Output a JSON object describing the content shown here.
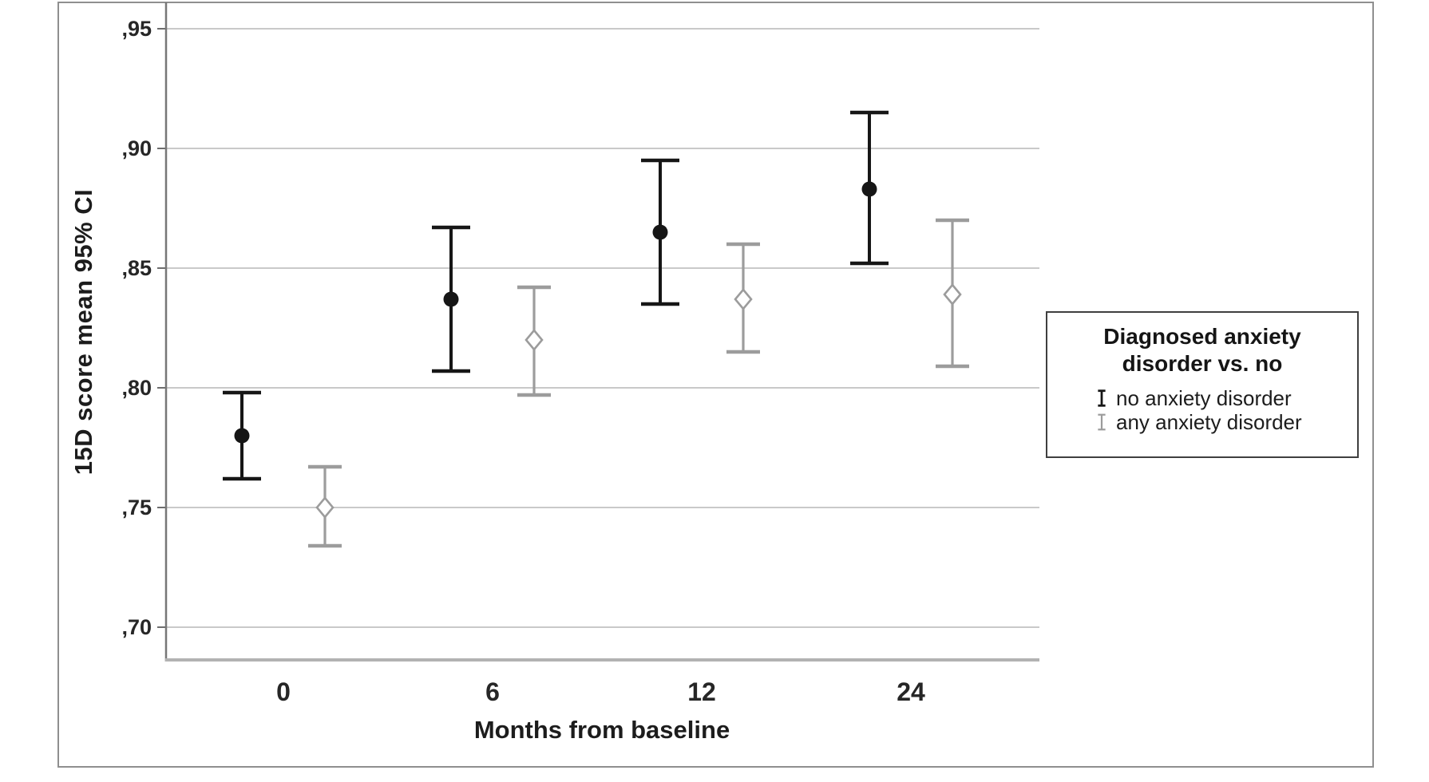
{
  "figure": {
    "kind": "clustered error bar chart",
    "background": "#ffffff",
    "frame_color": "#8f8f8f"
  },
  "legend": {
    "title_line1": "Diagnosed anxiety",
    "title_line2": "disorder vs. no",
    "items": [
      {
        "label": "no anxiety disorder",
        "icon": "black-errorbar-icon",
        "color": "#161616"
      },
      {
        "label": "any anxiety disorder",
        "icon": "gray-errorbar-icon",
        "color": "#9c9c9c"
      }
    ]
  },
  "chart_data": {
    "type": "errorbar",
    "title": "",
    "xlabel": "Months from baseline",
    "ylabel": "15D score mean 95% CI",
    "categories": [
      "0",
      "6",
      "12",
      "24"
    ],
    "error_bars": "95% CI",
    "grid": true,
    "legend_position": "right",
    "ylim": [
      0.69,
      0.96
    ],
    "y_axis": {
      "ticks": [
        {
          "label": ",95",
          "value": 0.95
        },
        {
          "label": ",90",
          "value": 0.9
        },
        {
          "label": ",85",
          "value": 0.85
        },
        {
          "label": ",80",
          "value": 0.8
        },
        {
          "label": ",75",
          "value": 0.75
        },
        {
          "label": ",70",
          "value": 0.7
        }
      ]
    },
    "series": [
      {
        "name": "no anxiety disorder",
        "marker": "filled-circle",
        "color": "#161616",
        "means": [
          0.78,
          0.837,
          0.865,
          0.883
        ],
        "ci_low": [
          0.762,
          0.807,
          0.835,
          0.852
        ],
        "ci_high": [
          0.798,
          0.867,
          0.895,
          0.915
        ]
      },
      {
        "name": "any anxiety disorder",
        "marker": "open-diamond",
        "color": "#9c9c9c",
        "means": [
          0.75,
          0.82,
          0.837,
          0.839
        ],
        "ci_low": [
          0.734,
          0.797,
          0.815,
          0.809
        ],
        "ci_high": [
          0.767,
          0.842,
          0.86,
          0.87
        ]
      }
    ]
  }
}
